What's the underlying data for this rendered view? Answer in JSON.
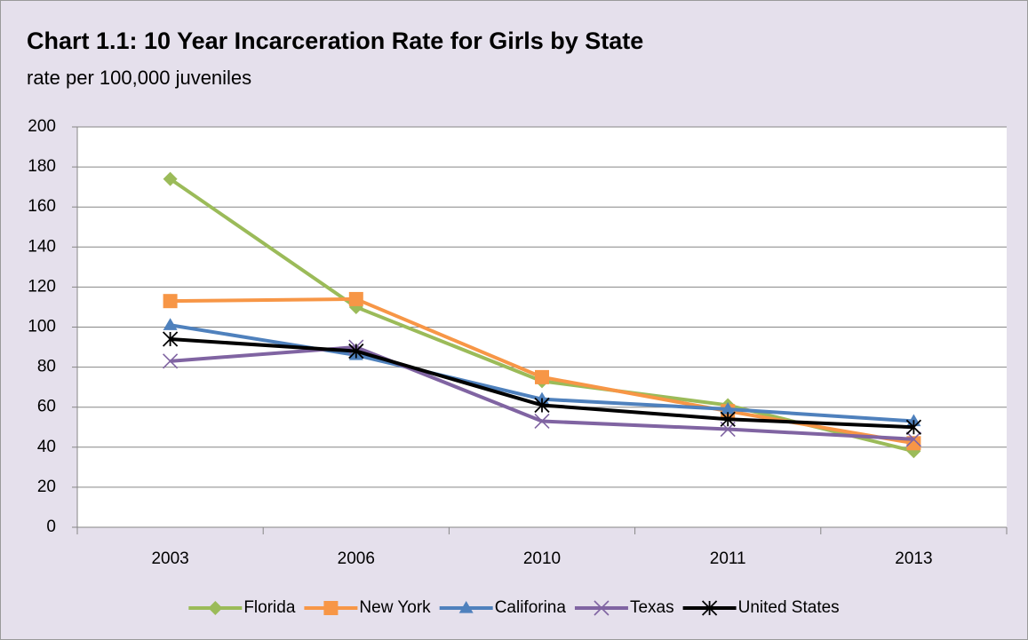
{
  "chart_data": {
    "type": "line",
    "title": "Chart 1.1: 10 Year Incarceration Rate for Girls by State",
    "subtitle": "rate per 100,000 juveniles",
    "categories": [
      "2003",
      "2006",
      "2010",
      "2011",
      "2013"
    ],
    "series": [
      {
        "name": "Florida",
        "color": "#9bbb59",
        "marker": "diamond",
        "values": [
          174,
          110,
          73,
          61,
          38
        ]
      },
      {
        "name": "New York",
        "color": "#f79646",
        "marker": "square",
        "values": [
          113,
          114,
          75,
          58,
          42
        ]
      },
      {
        "name": "Califorina",
        "color": "#4f81bd",
        "marker": "triangle",
        "values": [
          101,
          86,
          64,
          59,
          53
        ]
      },
      {
        "name": "Texas",
        "color": "#8064a2",
        "marker": "x",
        "values": [
          83,
          90,
          53,
          49,
          44
        ]
      },
      {
        "name": "United States",
        "color": "#000000",
        "marker": "star",
        "values": [
          94,
          88,
          61,
          54,
          50
        ]
      }
    ],
    "ylim": [
      0,
      200
    ],
    "yticks": [
      0,
      20,
      40,
      60,
      80,
      100,
      120,
      140,
      160,
      180,
      200
    ],
    "grid": true,
    "legend": "bottom"
  }
}
